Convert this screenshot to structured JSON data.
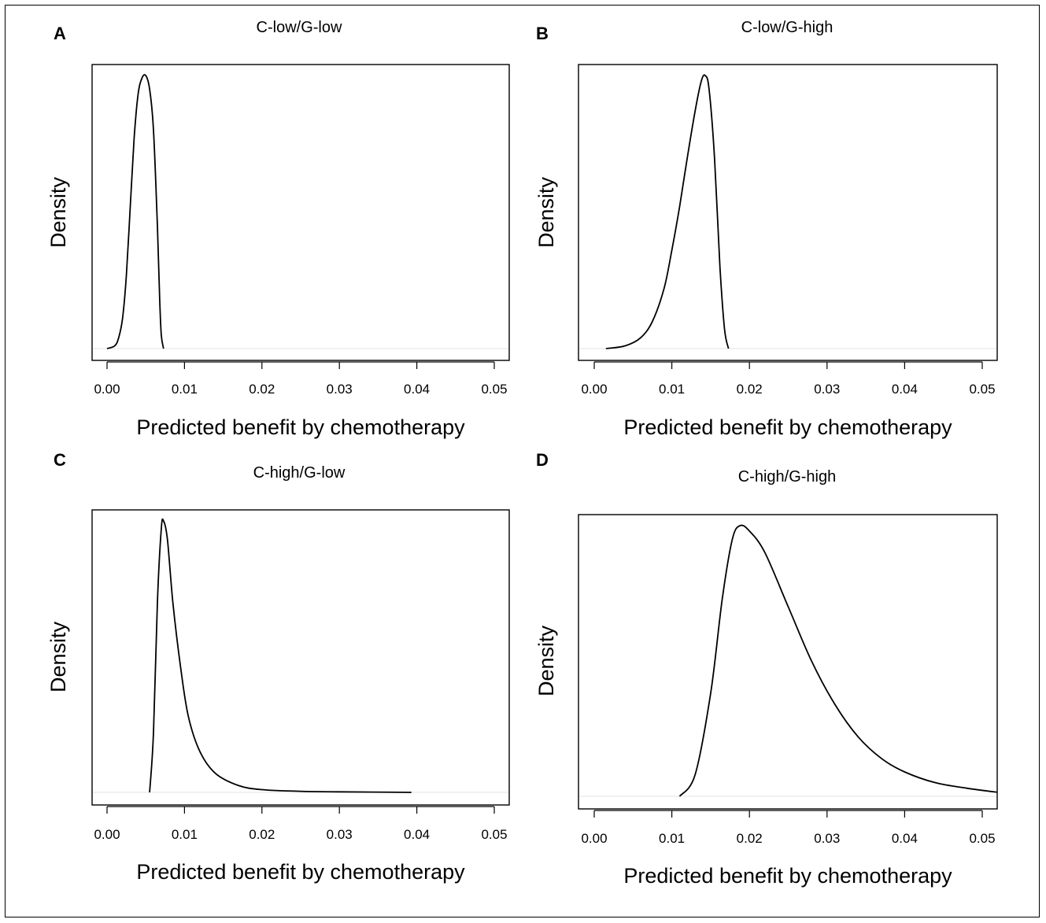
{
  "chart_data": [
    {
      "panel": "A",
      "type": "line",
      "title": "C-low/G-low",
      "xlabel": "Predicted benefit by chemotherapy",
      "ylabel": "Density",
      "xlim": [
        0,
        0.052
      ],
      "xticks": [
        "0.00",
        "0.01",
        "0.02",
        "0.03",
        "0.04",
        "0.05"
      ],
      "x": [
        0.0,
        0.001,
        0.0015,
        0.002,
        0.0025,
        0.003,
        0.0035,
        0.004,
        0.0045,
        0.005,
        0.0055,
        0.006,
        0.0065,
        0.0068,
        0.007,
        0.0073
      ],
      "y": [
        0.0,
        0.01,
        0.04,
        0.11,
        0.27,
        0.52,
        0.77,
        0.93,
        0.99,
        1.0,
        0.95,
        0.8,
        0.45,
        0.18,
        0.05,
        0.0
      ]
    },
    {
      "panel": "B",
      "type": "line",
      "title": "C-low/G-high",
      "xlabel": "Predicted benefit by chemotherapy",
      "ylabel": "Density",
      "xlim": [
        0,
        0.052
      ],
      "xticks": [
        "0.00",
        "0.01",
        "0.02",
        "0.03",
        "0.04",
        "0.05"
      ],
      "x": [
        0.0015,
        0.004,
        0.006,
        0.0075,
        0.009,
        0.01,
        0.011,
        0.012,
        0.013,
        0.0138,
        0.0143,
        0.0148,
        0.0155,
        0.0162,
        0.0168,
        0.0173
      ],
      "y": [
        0.0,
        0.01,
        0.04,
        0.1,
        0.22,
        0.36,
        0.52,
        0.7,
        0.87,
        0.98,
        1.0,
        0.95,
        0.7,
        0.3,
        0.07,
        0.0
      ]
    },
    {
      "panel": "C",
      "type": "line",
      "title": "C-high/G-low",
      "xlabel": "Predicted benefit by chemotherapy",
      "ylabel": "Density",
      "xlim": [
        0,
        0.052
      ],
      "xticks": [
        "0.00",
        "0.01",
        "0.02",
        "0.03",
        "0.04",
        "0.05"
      ],
      "x": [
        0.0055,
        0.006,
        0.0065,
        0.007,
        0.0073,
        0.0078,
        0.0085,
        0.0095,
        0.0105,
        0.012,
        0.014,
        0.017,
        0.02,
        0.025,
        0.03,
        0.0393
      ],
      "y": [
        0.0,
        0.22,
        0.7,
        0.97,
        1.0,
        0.93,
        0.7,
        0.46,
        0.28,
        0.15,
        0.07,
        0.025,
        0.01,
        0.004,
        0.002,
        0.0
      ]
    },
    {
      "panel": "D",
      "type": "line",
      "title": "C-high/G-high",
      "xlabel": "Predicted benefit by chemotherapy",
      "ylabel": "Density",
      "xlim": [
        0,
        0.052
      ],
      "xticks": [
        "0.00",
        "0.01",
        "0.02",
        "0.03",
        "0.04",
        "0.05"
      ],
      "x": [
        0.011,
        0.013,
        0.015,
        0.0165,
        0.0178,
        0.0188,
        0.02,
        0.022,
        0.025,
        0.028,
        0.031,
        0.034,
        0.037,
        0.04,
        0.044,
        0.048,
        0.052
      ],
      "y": [
        0.0,
        0.08,
        0.38,
        0.73,
        0.95,
        1.0,
        0.98,
        0.9,
        0.7,
        0.5,
        0.34,
        0.22,
        0.14,
        0.09,
        0.05,
        0.03,
        0.015
      ]
    }
  ]
}
